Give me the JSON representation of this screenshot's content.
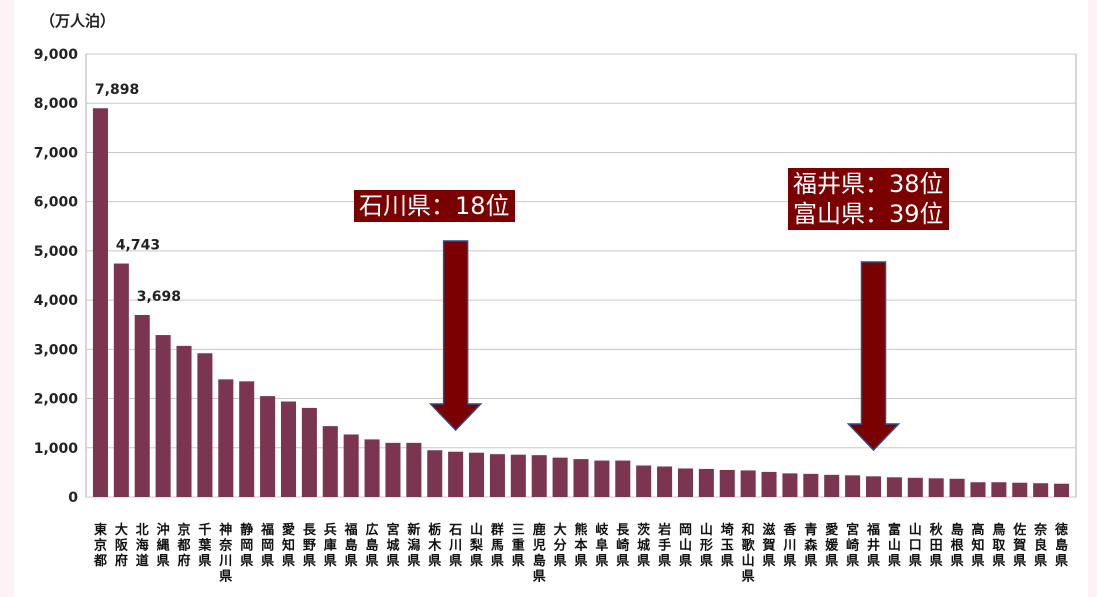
{
  "chart_data": {
    "type": "bar",
    "title": "",
    "unit_label": "（万人泊）",
    "xlabel": "",
    "ylabel": "",
    "ylim": [
      0,
      9000
    ],
    "yticks": [
      "0",
      "1,000",
      "2,000",
      "3,000",
      "4,000",
      "5,000",
      "6,000",
      "7,000",
      "8,000",
      "9,000"
    ],
    "grid": true,
    "bar_color": "#7b3551",
    "categories": [
      "東京都",
      "大阪府",
      "北海道",
      "沖縄県",
      "京都府",
      "千葉県",
      "神奈川県",
      "静岡県",
      "福岡県",
      "愛知県",
      "長野県",
      "兵庫県",
      "福島県",
      "広島県",
      "宮城県",
      "新潟県",
      "栃木県",
      "石川県",
      "山梨県",
      "群馬県",
      "三重県",
      "鹿児島県",
      "大分県",
      "熊本県",
      "岐阜県",
      "長崎県",
      "茨城県",
      "岩手県",
      "岡山県",
      "山形県",
      "埼玉県",
      "和歌山県",
      "滋賀県",
      "香川県",
      "青森県",
      "愛媛県",
      "宮崎県",
      "福井県",
      "富山県",
      "山口県",
      "秋田県",
      "島根県",
      "高知県",
      "鳥取県",
      "佐賀県",
      "奈良県",
      "徳島県"
    ],
    "values": [
      7898,
      4743,
      3698,
      3290,
      3070,
      2920,
      2390,
      2350,
      2050,
      1940,
      1810,
      1440,
      1270,
      1170,
      1100,
      1100,
      950,
      920,
      900,
      870,
      860,
      850,
      800,
      770,
      740,
      740,
      640,
      620,
      580,
      570,
      550,
      540,
      510,
      480,
      470,
      450,
      440,
      420,
      400,
      390,
      380,
      370,
      300,
      300,
      290,
      280,
      270
    ],
    "data_labels": [
      {
        "index": 0,
        "text": "7,898"
      },
      {
        "index": 1,
        "text": "4,743"
      },
      {
        "index": 2,
        "text": "3,698"
      }
    ],
    "annotations": [
      {
        "lines": [
          "石川県：18位"
        ],
        "target_category": "石川県",
        "color": "#7b0000"
      },
      {
        "lines": [
          "福井県：38位",
          "富山県：39位"
        ],
        "target_category": "福井県",
        "color": "#7b0000"
      }
    ]
  }
}
